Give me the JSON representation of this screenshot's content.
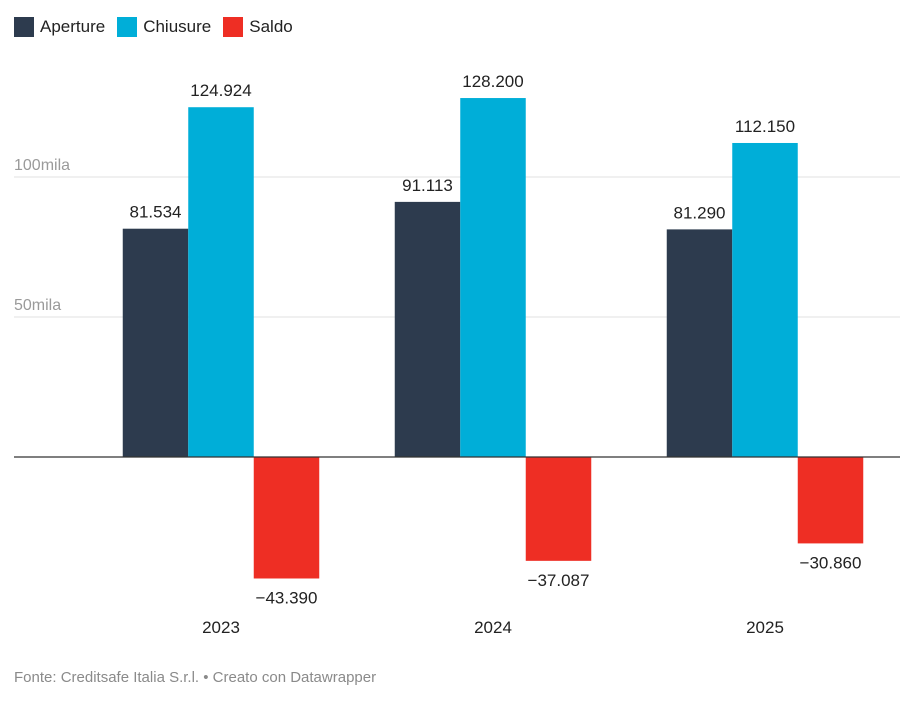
{
  "colors": {
    "aperture": "#2d3b4e",
    "chiusure": "#00aed8",
    "saldo": "#ee2e24",
    "grid": "#e2e2e2",
    "baseline": "#333333"
  },
  "footer": {
    "text": "Fonte: Creditsafe Italia S.r.l. • Creato con Datawrapper"
  },
  "chart_data": {
    "type": "bar",
    "title": "",
    "xlabel": "",
    "ylabel": "",
    "categories": [
      "2023",
      "2024",
      "2025"
    ],
    "series": [
      {
        "name": "Aperture",
        "values": [
          81534,
          91113,
          81290
        ],
        "labels": [
          "81.534",
          "91.113",
          "81.290"
        ]
      },
      {
        "name": "Chiusure",
        "values": [
          124924,
          128200,
          112150
        ],
        "labels": [
          "124.924",
          "128.200",
          "112.150"
        ]
      },
      {
        "name": "Saldo",
        "values": [
          -43390,
          -37087,
          -30860
        ],
        "labels": [
          "−43.390",
          "−37.087",
          "−30.860"
        ]
      }
    ],
    "yticks": [
      {
        "value": 50000,
        "label": "50mila"
      },
      {
        "value": 100000,
        "label": "100mila"
      }
    ],
    "ylim": [
      -50000,
      135000
    ],
    "grid": true,
    "legend": "top-left"
  }
}
